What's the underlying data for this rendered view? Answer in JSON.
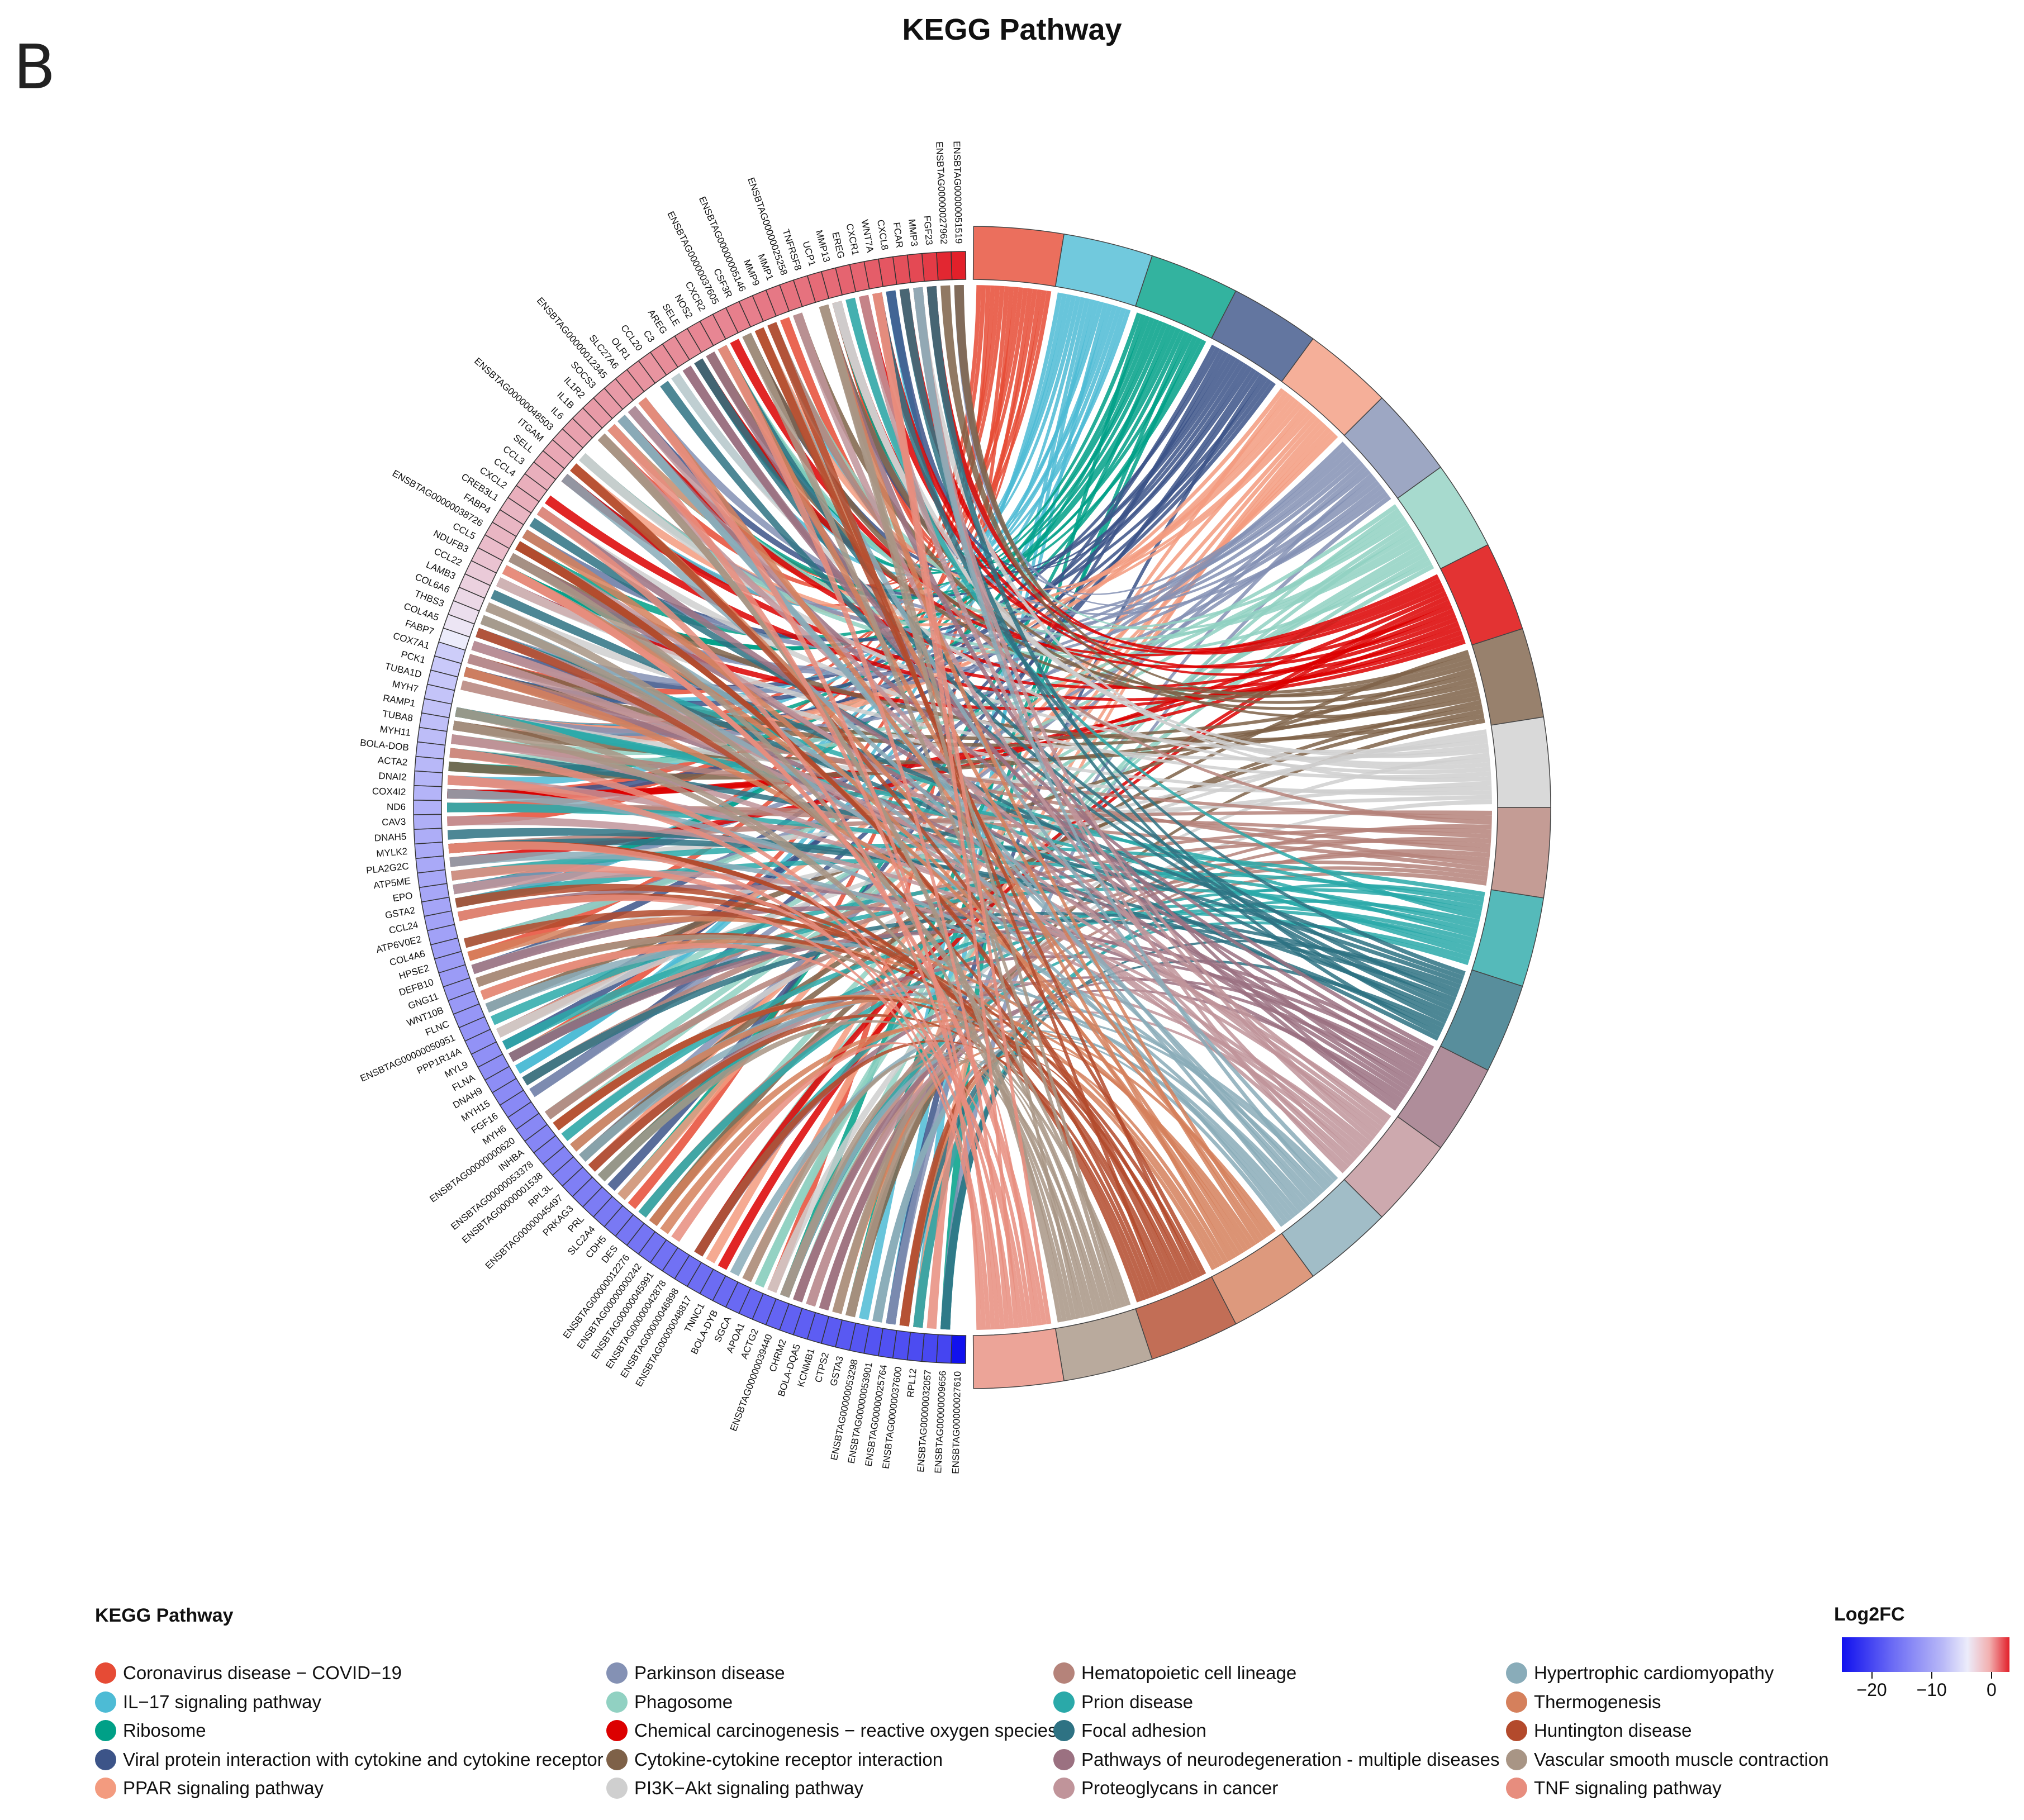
{
  "panel_letter": "B",
  "chart_data": {
    "type": "chord",
    "title": "KEGG Pathway",
    "legend_title": "KEGG Pathway",
    "color_scale": {
      "title": "Log2FC",
      "range": [
        -25,
        3
      ],
      "ticks": [
        -20,
        -10,
        0
      ],
      "tick_labels": [
        "−20",
        "−10",
        "0"
      ],
      "low_color": "#1111ee",
      "mid_color": "#ececfb",
      "high_color": "#e2202a"
    },
    "pathways": [
      {
        "name": "Coronavirus disease − COVID−19",
        "color": "#e64b35"
      },
      {
        "name": "IL−17 signaling pathway",
        "color": "#4dbbd5"
      },
      {
        "name": "Ribosome",
        "color": "#00a087"
      },
      {
        "name": "Viral protein interaction with cytokine and cytokine receptor",
        "color": "#3c5488"
      },
      {
        "name": "PPAR signaling pathway",
        "color": "#f39b7f"
      },
      {
        "name": "Parkinson disease",
        "color": "#8491b4"
      },
      {
        "name": "Phagosome",
        "color": "#91d1c2"
      },
      {
        "name": "Chemical carcinogenesis − reactive oxygen species",
        "color": "#dc0000"
      },
      {
        "name": "Cytokine-cytokine receptor interaction",
        "color": "#7e6148"
      },
      {
        "name": "PI3K−Akt signaling pathway",
        "color": "#cfcfcf"
      },
      {
        "name": "Hematopoietic cell lineage",
        "color": "#b5837a"
      },
      {
        "name": "Prion disease",
        "color": "#2aa9a9"
      },
      {
        "name": "Focal adhesion",
        "color": "#2e7283"
      },
      {
        "name": "Pathways of neurodegeneration - multiple diseases",
        "color": "#9b7181"
      },
      {
        "name": "Proteoglycans in cancer",
        "color": "#c0949a"
      },
      {
        "name": "Hypertrophic cardiomyopathy",
        "color": "#89acb9"
      },
      {
        "name": "Thermogenesis",
        "color": "#d5805c"
      },
      {
        "name": "Huntington disease",
        "color": "#b34a2c"
      },
      {
        "name": "Vascular smooth muscle contraction",
        "color": "#a89585"
      },
      {
        "name": "TNF signaling pathway",
        "color": "#e78d7e"
      }
    ],
    "genes": [
      {
        "name": "ENSBTAG00000051519",
        "log2fc": 3.0
      },
      {
        "name": "ENSBTAG00000027962",
        "log2fc": 2.9
      },
      {
        "name": "FGF23",
        "log2fc": 2.6
      },
      {
        "name": "MMP3",
        "log2fc": 2.4
      },
      {
        "name": "FCAR",
        "log2fc": 2.3
      },
      {
        "name": "CXCL8",
        "log2fc": 2.2
      },
      {
        "name": "WNT7A",
        "log2fc": 2.1
      },
      {
        "name": "CXCR1",
        "log2fc": 2.0
      },
      {
        "name": "EREG",
        "log2fc": 2.0
      },
      {
        "name": "MMP13",
        "log2fc": 1.9
      },
      {
        "name": "UCP1",
        "log2fc": 1.9
      },
      {
        "name": "TNFRSF8",
        "log2fc": 1.8
      },
      {
        "name": "ENSBTAG00000025258",
        "log2fc": 1.8
      },
      {
        "name": "MMP1",
        "log2fc": 1.7
      },
      {
        "name": "MMP9",
        "log2fc": 1.7
      },
      {
        "name": "ENSBTAG00000005146",
        "log2fc": 1.6
      },
      {
        "name": "CSF3R",
        "log2fc": 1.6
      },
      {
        "name": "ENSBTAG00000037605",
        "log2fc": 1.5
      },
      {
        "name": "CXCR2",
        "log2fc": 1.5
      },
      {
        "name": "NOS2",
        "log2fc": 1.5
      },
      {
        "name": "SELE",
        "log2fc": 1.4
      },
      {
        "name": "AREG",
        "log2fc": 1.4
      },
      {
        "name": "C3",
        "log2fc": 1.4
      },
      {
        "name": "CCL20",
        "log2fc": 1.3
      },
      {
        "name": "OLR1",
        "log2fc": 1.3
      },
      {
        "name": "SLC27A6",
        "log2fc": 1.3
      },
      {
        "name": "ENSBTAG00000012345",
        "log2fc": 1.2
      },
      {
        "name": "SOCS3",
        "log2fc": 1.2
      },
      {
        "name": "IL1R2",
        "log2fc": 1.2
      },
      {
        "name": "IL1B",
        "log2fc": 1.1
      },
      {
        "name": "IL6",
        "log2fc": 1.1
      },
      {
        "name": "ENSBTAG00000048503",
        "log2fc": 1.0
      },
      {
        "name": "ITGAM",
        "log2fc": 1.0
      },
      {
        "name": "SELL",
        "log2fc": 1.0
      },
      {
        "name": "CCL3",
        "log2fc": 0.9
      },
      {
        "name": "CCL4",
        "log2fc": 0.9
      },
      {
        "name": "CXCL2",
        "log2fc": 0.9
      },
      {
        "name": "CREB3L1",
        "log2fc": 0.8
      },
      {
        "name": "FABP4",
        "log2fc": 0.8
      },
      {
        "name": "ENSBTAG00000038726",
        "log2fc": 0.8
      },
      {
        "name": "CCL5",
        "log2fc": 0.7
      },
      {
        "name": "NDUFB3",
        "log2fc": 0.6
      },
      {
        "name": "CCL22",
        "log2fc": 0.5
      },
      {
        "name": "LAMB3",
        "log2fc": 0.4
      },
      {
        "name": "COL6A6",
        "log2fc": 0.3
      },
      {
        "name": "THBS3",
        "log2fc": 0.2
      },
      {
        "name": "COL4A5",
        "log2fc": 0.1
      },
      {
        "name": "FABP7",
        "log2fc": 0.0
      },
      {
        "name": "COX7A1",
        "log2fc": -1.5
      },
      {
        "name": "PCK1",
        "log2fc": -1.8
      },
      {
        "name": "TUBA1D",
        "log2fc": -2.0
      },
      {
        "name": "MYH7",
        "log2fc": -2.2
      },
      {
        "name": "RAMP1",
        "log2fc": -2.4
      },
      {
        "name": "TUBA8",
        "log2fc": -2.6
      },
      {
        "name": "MYH11",
        "log2fc": -2.8
      },
      {
        "name": "BOLA-DOB",
        "log2fc": -3.0
      },
      {
        "name": "ACTA2",
        "log2fc": -3.2
      },
      {
        "name": "DNAI2",
        "log2fc": -3.4
      },
      {
        "name": "COX4I2",
        "log2fc": -3.6
      },
      {
        "name": "ND6",
        "log2fc": -3.8
      },
      {
        "name": "CAV3",
        "log2fc": -4.0
      },
      {
        "name": "DNAH5",
        "log2fc": -4.2
      },
      {
        "name": "MYLK2",
        "log2fc": -4.4
      },
      {
        "name": "PLA2G2C",
        "log2fc": -4.6
      },
      {
        "name": "ATP5ME",
        "log2fc": -4.7
      },
      {
        "name": "EPO",
        "log2fc": -4.8
      },
      {
        "name": "GSTA2",
        "log2fc": -5.0
      },
      {
        "name": "CCL24",
        "log2fc": -5.2
      },
      {
        "name": "ATP6V0E2",
        "log2fc": -5.4
      },
      {
        "name": "COL4A6",
        "log2fc": -5.6
      },
      {
        "name": "HPSE2",
        "log2fc": -5.8
      },
      {
        "name": "DEFB10",
        "log2fc": -6.0
      },
      {
        "name": "GNG11",
        "log2fc": -6.1
      },
      {
        "name": "WNT10B",
        "log2fc": -6.3
      },
      {
        "name": "FLNC",
        "log2fc": -6.6
      },
      {
        "name": "ENSBTAG00000050951",
        "log2fc": -6.8
      },
      {
        "name": "PPP1R14A",
        "log2fc": -7.0
      },
      {
        "name": "MYL9",
        "log2fc": -7.2
      },
      {
        "name": "FLNA",
        "log2fc": -7.4
      },
      {
        "name": "DNAH9",
        "log2fc": -7.6
      },
      {
        "name": "MYH15",
        "log2fc": -7.8
      },
      {
        "name": "FGF16",
        "log2fc": -8.0
      },
      {
        "name": "MYH6",
        "log2fc": -8.1
      },
      {
        "name": "ENSBTAG00000000620",
        "log2fc": -8.2
      },
      {
        "name": "INHBA",
        "log2fc": -8.4
      },
      {
        "name": "ENSBTAG00000053378",
        "log2fc": -8.6
      },
      {
        "name": "ENSBTAG00000001538",
        "log2fc": -8.8
      },
      {
        "name": "RPL3L",
        "log2fc": -9.0
      },
      {
        "name": "ENSBTAG00000045497",
        "log2fc": -9.2
      },
      {
        "name": "PRKAG3",
        "log2fc": -9.4
      },
      {
        "name": "PRL",
        "log2fc": -9.6
      },
      {
        "name": "SLC2A4",
        "log2fc": -9.8
      },
      {
        "name": "CDH5",
        "log2fc": -10.0
      },
      {
        "name": "DES",
        "log2fc": -10.2
      },
      {
        "name": "ENSBTAG00000012276",
        "log2fc": -10.4
      },
      {
        "name": "ENSBTAG00000000242",
        "log2fc": -10.6
      },
      {
        "name": "ENSBTAG00000045991",
        "log2fc": -10.8
      },
      {
        "name": "ENSBTAG00000042878",
        "log2fc": -11.0
      },
      {
        "name": "ENSBTAG00000046898",
        "log2fc": -11.2
      },
      {
        "name": "ENSBTAG00000048817",
        "log2fc": -11.4
      },
      {
        "name": "TNNC1",
        "log2fc": -11.6
      },
      {
        "name": "BOLA-DYB",
        "log2fc": -11.8
      },
      {
        "name": "SGCA",
        "log2fc": -12.0
      },
      {
        "name": "APOA1",
        "log2fc": -12.2
      },
      {
        "name": "ACTG2",
        "log2fc": -12.4
      },
      {
        "name": "ENSBTAG00000039440",
        "log2fc": -12.7
      },
      {
        "name": "CHRM2",
        "log2fc": -13.0
      },
      {
        "name": "BOLA-DQA5",
        "log2fc": -13.3
      },
      {
        "name": "KCNMB1",
        "log2fc": -13.6
      },
      {
        "name": "CTPS2",
        "log2fc": -13.9
      },
      {
        "name": "GSTA3",
        "log2fc": -14.2
      },
      {
        "name": "ENSBTAG00000053298",
        "log2fc": -14.5
      },
      {
        "name": "ENSBTAG00000053901",
        "log2fc": -14.8
      },
      {
        "name": "ENSBTAG00000025764",
        "log2fc": -15.2
      },
      {
        "name": "ENSBTAG00000037600",
        "log2fc": -15.6
      },
      {
        "name": "RPL12",
        "log2fc": -16.0
      },
      {
        "name": "ENSBTAG00000032057",
        "log2fc": -16.5
      },
      {
        "name": "ENSBTAG00000009656",
        "log2fc": -17.0
      },
      {
        "name": "ENSBTAG00000027610",
        "log2fc": -25.0
      }
    ]
  }
}
